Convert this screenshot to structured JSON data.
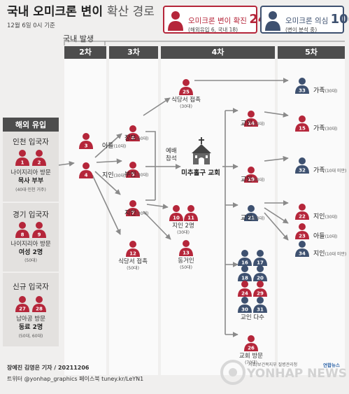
{
  "title": {
    "main": "국내 오미크론 변이",
    "sub": "확산 경로"
  },
  "date": "12월 6일 0시 기준",
  "legend": {
    "confirmed": {
      "label": "오미크론 변이 확진",
      "count": "24",
      "unit": "명",
      "detail": "(해외유입 6, 국내 18)",
      "color": "#b5263a"
    },
    "suspected": {
      "label": "오미크론 의심",
      "count": "10",
      "unit": "명",
      "detail": "(변이 분석 중)",
      "color": "#3e5170"
    }
  },
  "domestic_label": "국내 발생",
  "stages": [
    "2차",
    "3차",
    "4차",
    "5차"
  ],
  "imported": {
    "header": "해외 유입",
    "incheon": {
      "title": "인천 입국자",
      "ids": [
        "1",
        "2"
      ],
      "desc1": "나이지리아 방문",
      "desc2": "목사 부부",
      "desc3": "(40대·인천 거주)"
    },
    "gyeonggi": {
      "title": "경기 입국자",
      "ids": [
        "8",
        "9"
      ],
      "desc1": "나이지리아 방문",
      "desc2": "여성 2명",
      "desc3": "(50대)"
    },
    "new": {
      "title": "신규 입국자",
      "ids": [
        "27",
        "28"
      ],
      "desc1": "남아공 방문",
      "desc2": "동료 2명",
      "desc3": "(50대, 60대)"
    }
  },
  "church": "미추홀구 교회",
  "worship": [
    "예배",
    "참석"
  ],
  "nodes": [
    {
      "id": "3",
      "type": "c",
      "label": "아들",
      "sub": "(10대)"
    },
    {
      "id": "4",
      "type": "c",
      "label": "지인",
      "sub": "(30대)"
    },
    {
      "id": "6",
      "type": "c",
      "label": "장모",
      "sub": "(60대)"
    },
    {
      "id": "5",
      "type": "c",
      "label": "부인",
      "sub": "(30대)"
    },
    {
      "id": "7",
      "type": "c",
      "label": "지인",
      "sub": "(30대)"
    },
    {
      "id": "12",
      "type": "c",
      "label": "식당서 접촉",
      "sub": "(50대)"
    },
    {
      "id": "25",
      "type": "c",
      "label": "식당서 접촉",
      "sub": "(30대)"
    },
    {
      "id": "10",
      "type": "c",
      "label": "",
      "sub": ""
    },
    {
      "id": "11",
      "type": "c",
      "label": "지인 2명",
      "sub": "(30대)"
    },
    {
      "id": "13",
      "type": "c",
      "label": "동거인",
      "sub": "(50대)"
    },
    {
      "id": "14",
      "type": "c",
      "label": "교인",
      "sub": "(20대)"
    },
    {
      "id": "19",
      "type": "c",
      "label": "교인",
      "sub": "(30대)"
    },
    {
      "id": "21",
      "type": "s",
      "label": "교인",
      "sub": "(50대)"
    },
    {
      "id": "16",
      "type": "s",
      "label": "",
      "sub": ""
    },
    {
      "id": "17",
      "type": "s",
      "label": "",
      "sub": ""
    },
    {
      "id": "18",
      "type": "s",
      "label": "",
      "sub": ""
    },
    {
      "id": "20",
      "type": "s",
      "label": "",
      "sub": ""
    },
    {
      "id": "24",
      "type": "c",
      "label": "",
      "sub": ""
    },
    {
      "id": "29",
      "type": "c",
      "label": "",
      "sub": ""
    },
    {
      "id": "30",
      "type": "s",
      "label": "",
      "sub": ""
    },
    {
      "id": "31",
      "type": "s",
      "label": "교인 다수",
      "sub": ""
    },
    {
      "id": "26",
      "type": "c",
      "label": "교회 방문",
      "sub": "(70대)"
    },
    {
      "id": "33",
      "type": "s",
      "label": "가족",
      "sub": "(30대)"
    },
    {
      "id": "15",
      "type": "c",
      "label": "가족",
      "sub": "(30대)"
    },
    {
      "id": "32",
      "type": "s",
      "label": "가족",
      "sub": "(10대 미만)"
    },
    {
      "id": "22",
      "type": "c",
      "label": "지인",
      "sub": "(30대)"
    },
    {
      "id": "23",
      "type": "c",
      "label": "아들",
      "sub": "(10대)"
    },
    {
      "id": "34",
      "type": "s",
      "label": "지인",
      "sub": "(10대 미만)"
    }
  ],
  "source": "자료/보건복지부 질병관리청",
  "credit": "장예진 김영은 기자 / 20211206",
  "social": "트위터 @yonhap_graphics  페이스북 tuney.kr/LeYN1",
  "agency_small": "연합뉴스",
  "watermark": "YONHAP NEWS"
}
